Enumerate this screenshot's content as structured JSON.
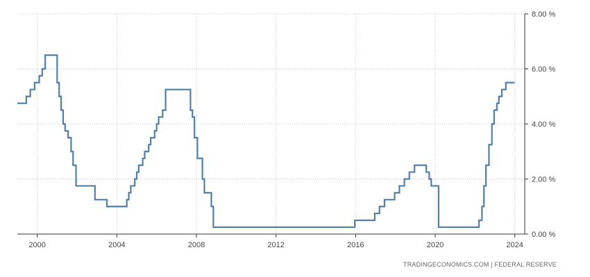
{
  "source_text": "TRADINGECONOMICS.COM  |  FEDERAL RESERVE",
  "colors": {
    "line": "#4f7fa8",
    "grid": "#c8c8c8",
    "axis": "#333333"
  },
  "chart_data": {
    "type": "line",
    "title": "",
    "xlabel": "",
    "ylabel": "",
    "xlim": [
      1999.0,
      2024.5
    ],
    "ylim": [
      0,
      8
    ],
    "x_ticks": [
      2000,
      2004,
      2008,
      2012,
      2016,
      2020,
      2024
    ],
    "x_tick_labels": [
      "2000",
      "2004",
      "2008",
      "2012",
      "2016",
      "2020",
      "2024"
    ],
    "y_ticks": [
      0,
      2,
      4,
      6,
      8
    ],
    "y_tick_labels": [
      "0.00 %",
      "2.00 %",
      "4.00 %",
      "6.00 %",
      "8.00 %"
    ],
    "grid": true,
    "y_axis_position": "right",
    "step": true,
    "series": [
      {
        "x": [
          1999.0,
          1999.45,
          1999.65,
          1999.87,
          2000.1,
          2000.25,
          2000.4,
          2001.0,
          2001.1,
          2001.2,
          2001.3,
          2001.4,
          2001.55,
          2001.7,
          2001.8,
          2001.95,
          2002.9,
          2003.5,
          2004.5,
          2004.6,
          2004.7,
          2004.9,
          2005.0,
          2005.1,
          2005.3,
          2005.4,
          2005.6,
          2005.7,
          2005.9,
          2006.0,
          2006.1,
          2006.3,
          2006.45,
          2007.7,
          2007.8,
          2007.9,
          2008.05,
          2008.3,
          2008.4,
          2008.75,
          2008.85,
          2008.96,
          2015.96,
          2016.96,
          2017.2,
          2017.45,
          2017.96,
          2018.2,
          2018.45,
          2018.7,
          2018.96,
          2019.55,
          2019.7,
          2019.8,
          2020.17,
          2020.22,
          2022.2,
          2022.35,
          2022.45,
          2022.55,
          2022.7,
          2022.85,
          2022.96,
          2023.1,
          2023.2,
          2023.35,
          2023.55,
          2024.0
        ],
        "values": [
          4.75,
          5.0,
          5.25,
          5.5,
          5.75,
          6.0,
          6.5,
          5.5,
          5.0,
          4.5,
          4.0,
          3.75,
          3.5,
          3.0,
          2.5,
          1.75,
          1.25,
          1.0,
          1.25,
          1.5,
          1.75,
          2.0,
          2.25,
          2.5,
          2.75,
          3.0,
          3.25,
          3.5,
          3.75,
          4.0,
          4.25,
          4.5,
          5.25,
          4.5,
          4.25,
          3.5,
          2.75,
          2.0,
          1.5,
          1.0,
          0.25,
          0.25,
          0.5,
          0.75,
          1.0,
          1.25,
          1.5,
          1.75,
          2.0,
          2.25,
          2.5,
          2.25,
          2.0,
          1.75,
          0.25,
          0.25,
          0.5,
          1.0,
          1.75,
          2.5,
          3.25,
          4.0,
          4.5,
          4.75,
          5.0,
          5.25,
          5.5,
          5.5
        ]
      }
    ]
  }
}
